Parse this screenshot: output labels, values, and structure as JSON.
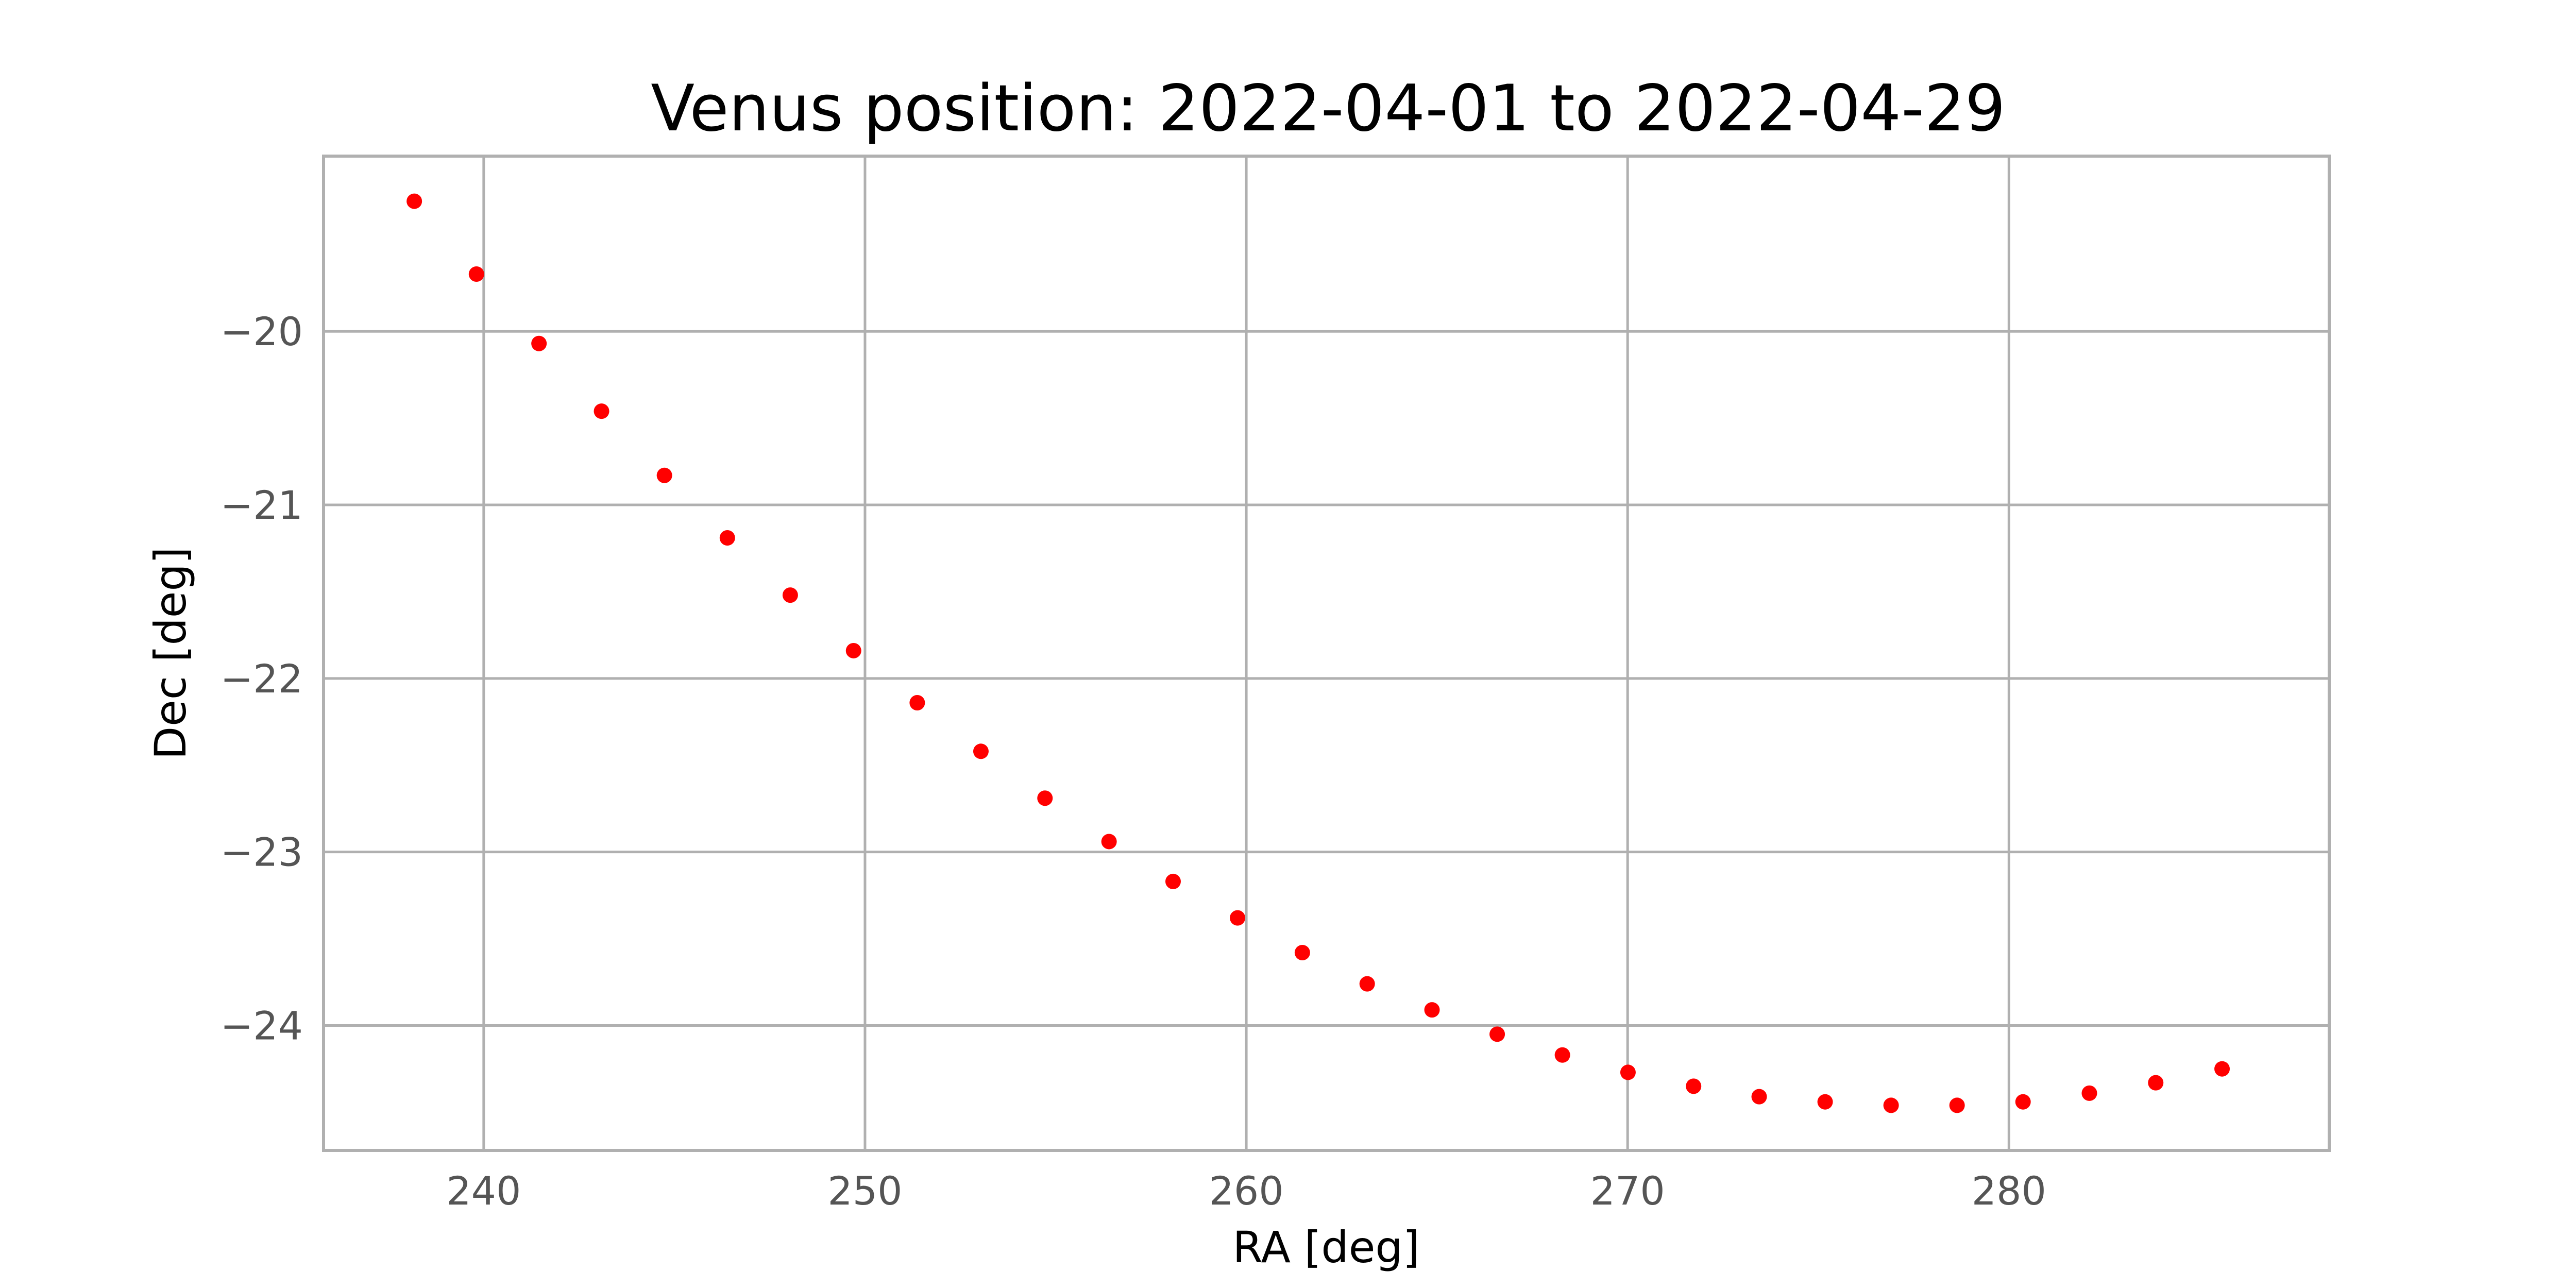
{
  "chart_data": {
    "type": "scatter",
    "title": "Venus position: 2022-04-01 to 2022-04-29",
    "xlabel": "RA [deg]",
    "ylabel": "Dec [deg]",
    "xlim": [
      235.8,
      288.4
    ],
    "ylim": [
      -24.72,
      -18.99
    ],
    "xticks": [
      240,
      250,
      260,
      270,
      280
    ],
    "yticks": [
      -20,
      -21,
      -22,
      -23,
      -24
    ],
    "xtick_labels": [
      "240",
      "250",
      "260",
      "270",
      "280"
    ],
    "ytick_labels": [
      "−20",
      "−21",
      "−22",
      "−23",
      "−24"
    ],
    "grid": true,
    "marker_color": "#ff0000",
    "series": [
      {
        "x": [
          238.18,
          239.81,
          241.45,
          243.09,
          244.74,
          246.39,
          248.04,
          249.7,
          251.37,
          253.04,
          254.72,
          256.4,
          258.08,
          259.77,
          261.47,
          263.17,
          264.87,
          266.58,
          268.29,
          270.01,
          271.73,
          273.45,
          275.18,
          276.91,
          278.64,
          280.37,
          282.11,
          283.85,
          285.59
        ],
        "y": [
          -19.25,
          -19.67,
          -20.07,
          -20.46,
          -20.83,
          -21.19,
          -21.52,
          -21.84,
          -22.14,
          -22.42,
          -22.69,
          -22.94,
          -23.17,
          -23.38,
          -23.58,
          -23.76,
          -23.91,
          -24.05,
          -24.17,
          -24.27,
          -24.35,
          -24.41,
          -24.44,
          -24.46,
          -24.46,
          -24.44,
          -24.39,
          -24.33,
          -24.25
        ]
      }
    ]
  }
}
